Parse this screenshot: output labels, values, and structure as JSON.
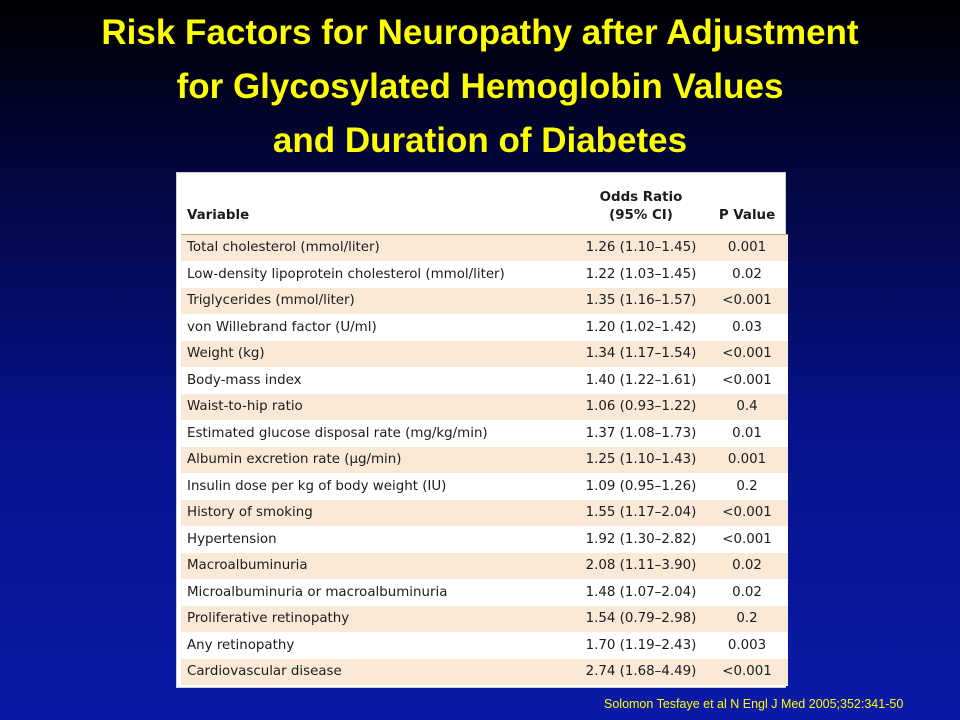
{
  "title": {
    "line1": "Risk Factors for Neuropathy after Adjustment",
    "line2": "for Glycosylated Hemoglobin Values",
    "line3": "and Duration of Diabetes"
  },
  "table": {
    "headers": {
      "variable": "Variable",
      "odds_ratio_line1": "Odds Ratio",
      "odds_ratio_line2": "(95% CI)",
      "p_value": "P Value"
    },
    "rows": [
      {
        "variable": "Total cholesterol (mmol/liter)",
        "odds_ratio": "1.26 (1.10–1.45)",
        "p_value": "0.001"
      },
      {
        "variable": "Low-density lipoprotein cholesterol (mmol/liter)",
        "odds_ratio": "1.22 (1.03–1.45)",
        "p_value": "0.02"
      },
      {
        "variable": "Triglycerides (mmol/liter)",
        "odds_ratio": "1.35 (1.16–1.57)",
        "p_value": "<0.001"
      },
      {
        "variable": "von Willebrand factor (U/ml)",
        "odds_ratio": "1.20 (1.02–1.42)",
        "p_value": "0.03"
      },
      {
        "variable": "Weight (kg)",
        "odds_ratio": "1.34 (1.17–1.54)",
        "p_value": "<0.001"
      },
      {
        "variable": "Body-mass index",
        "odds_ratio": "1.40 (1.22–1.61)",
        "p_value": "<0.001"
      },
      {
        "variable": "Waist-to-hip ratio",
        "odds_ratio": "1.06 (0.93–1.22)",
        "p_value": "0.4"
      },
      {
        "variable": "Estimated glucose disposal rate (mg/kg/min)",
        "odds_ratio": "1.37 (1.08–1.73)",
        "p_value": "0.01"
      },
      {
        "variable": "Albumin excretion rate (μg/min)",
        "odds_ratio": "1.25 (1.10–1.43)",
        "p_value": "0.001"
      },
      {
        "variable": "Insulin dose per kg of body weight (IU)",
        "odds_ratio": "1.09 (0.95–1.26)",
        "p_value": "0.2"
      },
      {
        "variable": "History of smoking",
        "odds_ratio": "1.55 (1.17–2.04)",
        "p_value": "<0.001"
      },
      {
        "variable": "Hypertension",
        "odds_ratio": "1.92 (1.30–2.82)",
        "p_value": "<0.001"
      },
      {
        "variable": "Macroalbuminuria",
        "odds_ratio": "2.08 (1.11–3.90)",
        "p_value": "0.02"
      },
      {
        "variable": "Microalbuminuria or macroalbuminuria",
        "odds_ratio": "1.48 (1.07–2.04)",
        "p_value": "0.02"
      },
      {
        "variable": "Proliferative retinopathy",
        "odds_ratio": "1.54 (0.79–2.98)",
        "p_value": "0.2"
      },
      {
        "variable": "Any retinopathy",
        "odds_ratio": "1.70 (1.19–2.43)",
        "p_value": "0.003"
      },
      {
        "variable": "Cardiovascular disease",
        "odds_ratio": "2.74 (1.68–4.49)",
        "p_value": "<0.001"
      }
    ]
  },
  "citation": "Solomon Tesfaye et al N Engl J Med 2005;352:341-50",
  "colors": {
    "title_text": "#ffff00",
    "background_top": "#000000",
    "background_bottom": "#0a1aa8",
    "row_stripe": "#fbe9d7",
    "table_background": "#ffffff"
  }
}
